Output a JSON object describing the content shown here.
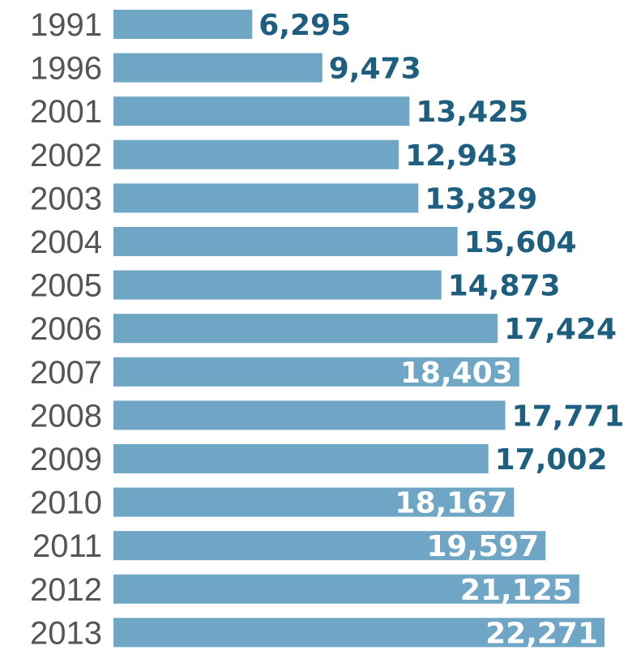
{
  "colors": {
    "bar": "#6fa6c6",
    "value_outside": "#1e5f80",
    "value_inside": "#ffffff",
    "year_text": "#555555"
  },
  "chart_data": {
    "type": "bar",
    "orientation": "horizontal",
    "categories": [
      "1991",
      "1996",
      "2001",
      "2002",
      "2003",
      "2004",
      "2005",
      "2006",
      "2007",
      "2008",
      "2009",
      "2010",
      "2011",
      "2012",
      "2013"
    ],
    "values": [
      6295,
      9473,
      13425,
      12943,
      13829,
      15604,
      14873,
      17424,
      18403,
      17771,
      17002,
      18167,
      19597,
      21125,
      22271
    ],
    "data_labels": [
      "6,295",
      "9,473",
      "13,425",
      "12,943",
      "13,829",
      "15,604",
      "14,873",
      "17,424",
      "18,403",
      "17,771",
      "17,002",
      "18,167",
      "19,597",
      "21,125",
      "22,271"
    ],
    "label_inside": [
      false,
      false,
      false,
      false,
      false,
      false,
      false,
      false,
      true,
      false,
      false,
      true,
      true,
      true,
      true
    ],
    "xlim": [
      0,
      22271
    ],
    "grid": false,
    "legend": "none"
  }
}
